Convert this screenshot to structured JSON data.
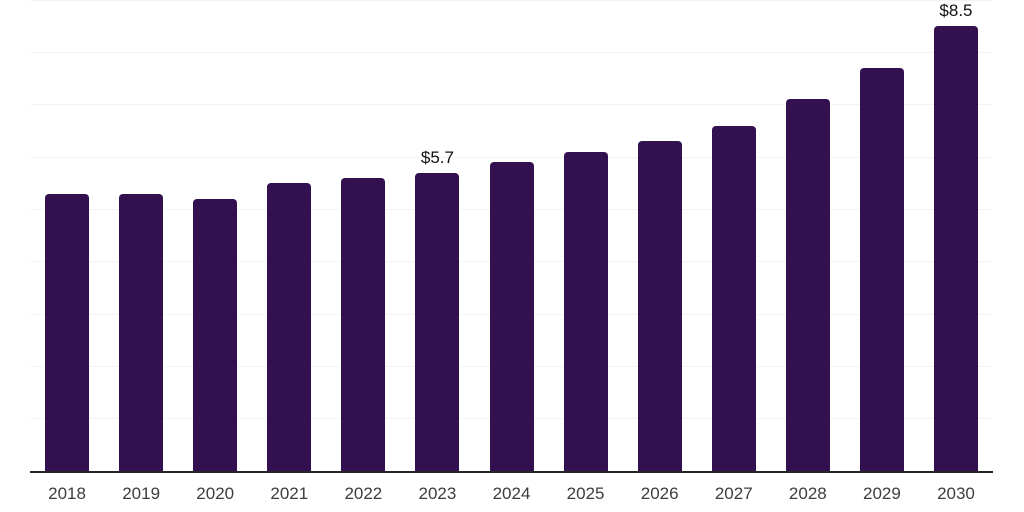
{
  "chart_data": {
    "type": "bar",
    "title": "",
    "xlabel": "",
    "ylabel": "",
    "categories": [
      "2018",
      "2019",
      "2020",
      "2021",
      "2022",
      "2023",
      "2024",
      "2025",
      "2026",
      "2027",
      "2028",
      "2029",
      "2030"
    ],
    "values": [
      5.3,
      5.3,
      5.2,
      5.5,
      5.6,
      5.7,
      5.9,
      6.1,
      6.3,
      6.6,
      7.1,
      7.7,
      8.5
    ],
    "value_labels": {
      "2023": "$5.7",
      "2030": "$8.5"
    },
    "ylim": [
      0,
      9
    ],
    "grid": "horizontal",
    "grid_step": 1,
    "legend": "none",
    "colors": {
      "bar": "#331150",
      "gridline": "#f3f3f3",
      "axis_line": "#262626",
      "tick_label": "#3d3d3d",
      "value_label": "#111111",
      "background": "#ffffff"
    }
  }
}
